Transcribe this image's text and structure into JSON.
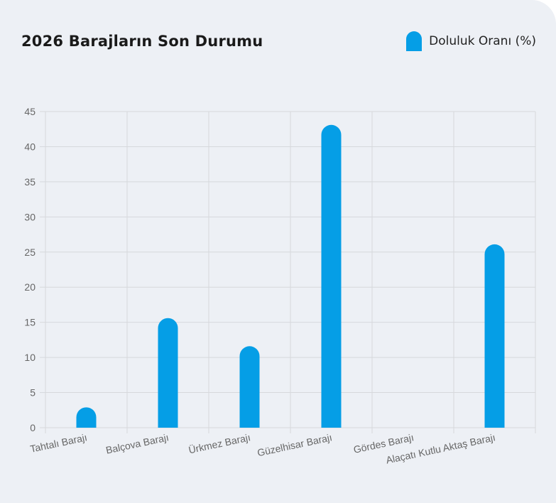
{
  "header": {
    "title": "2026 Barajların Son Durumu"
  },
  "chart_data": {
    "type": "bar",
    "title": "2026 Barajların Son Durumu",
    "xlabel": "",
    "ylabel": "",
    "categories": [
      "Tahtalı Barajı",
      "Balçova Barajı",
      "Ürkmez Barajı",
      "Güzelhisar Barajı",
      "Gördes Barajı",
      "Alaçatı Kutlu Aktaş Barajı"
    ],
    "series": [
      {
        "name": "Doluluk Oranı (%)",
        "values": [
          2.9,
          15.6,
          11.6,
          43.1,
          0,
          26.1
        ],
        "color": "#059ee6"
      }
    ],
    "ylim": [
      0,
      45
    ],
    "yticks": [
      0,
      5,
      10,
      15,
      20,
      25,
      30,
      35,
      40,
      45
    ],
    "grid": true,
    "legend_position": "top-right"
  }
}
